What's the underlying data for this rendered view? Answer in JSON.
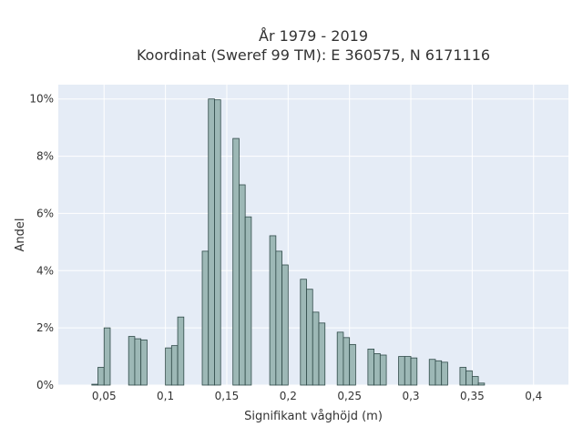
{
  "chart_data": {
    "type": "bar",
    "title_line1": "År 1979 - 2019",
    "title_line2": "Koordinat (Sweref 99 TM): E 360575, N 6171116",
    "xlabel": "Signifikant våghöjd (m)",
    "ylabel": "Andel",
    "xlim": [
      0.0127,
      0.4284
    ],
    "ylim": [
      0,
      10.5
    ],
    "bin_width": 0.005,
    "grid": true,
    "x_ticks": [
      {
        "value": 0.05,
        "label": "0,05"
      },
      {
        "value": 0.1,
        "label": "0,1"
      },
      {
        "value": 0.15,
        "label": "0,15"
      },
      {
        "value": 0.2,
        "label": "0,2"
      },
      {
        "value": 0.25,
        "label": "0,25"
      },
      {
        "value": 0.3,
        "label": "0,3"
      },
      {
        "value": 0.35,
        "label": "0,35"
      },
      {
        "value": 0.4,
        "label": "0,4"
      }
    ],
    "y_ticks": [
      {
        "value": 0,
        "label": "0%"
      },
      {
        "value": 2,
        "label": "2%"
      },
      {
        "value": 4,
        "label": "4%"
      },
      {
        "value": 6,
        "label": "6%"
      },
      {
        "value": 8,
        "label": "8%"
      },
      {
        "value": 10,
        "label": "10%"
      }
    ],
    "bars": [
      {
        "x": 0.04,
        "value": 0.03
      },
      {
        "x": 0.045,
        "value": 0.62
      },
      {
        "x": 0.05,
        "value": 2.0
      },
      {
        "x": 0.07,
        "value": 1.7
      },
      {
        "x": 0.075,
        "value": 1.62
      },
      {
        "x": 0.08,
        "value": 1.58
      },
      {
        "x": 0.1,
        "value": 1.3
      },
      {
        "x": 0.105,
        "value": 1.38
      },
      {
        "x": 0.11,
        "value": 2.38
      },
      {
        "x": 0.13,
        "value": 4.68
      },
      {
        "x": 0.135,
        "value": 10.0
      },
      {
        "x": 0.14,
        "value": 9.97
      },
      {
        "x": 0.155,
        "value": 8.62
      },
      {
        "x": 0.16,
        "value": 7.0
      },
      {
        "x": 0.165,
        "value": 5.88
      },
      {
        "x": 0.185,
        "value": 5.22
      },
      {
        "x": 0.19,
        "value": 4.68
      },
      {
        "x": 0.195,
        "value": 4.2
      },
      {
        "x": 0.21,
        "value": 3.7
      },
      {
        "x": 0.215,
        "value": 3.35
      },
      {
        "x": 0.22,
        "value": 2.55
      },
      {
        "x": 0.225,
        "value": 2.17
      },
      {
        "x": 0.24,
        "value": 1.85
      },
      {
        "x": 0.245,
        "value": 1.66
      },
      {
        "x": 0.25,
        "value": 1.42
      },
      {
        "x": 0.265,
        "value": 1.26
      },
      {
        "x": 0.27,
        "value": 1.1
      },
      {
        "x": 0.275,
        "value": 1.05
      },
      {
        "x": 0.29,
        "value": 1.0
      },
      {
        "x": 0.295,
        "value": 1.0
      },
      {
        "x": 0.3,
        "value": 0.95
      },
      {
        "x": 0.315,
        "value": 0.9
      },
      {
        "x": 0.32,
        "value": 0.85
      },
      {
        "x": 0.325,
        "value": 0.8
      },
      {
        "x": 0.34,
        "value": 0.62
      },
      {
        "x": 0.345,
        "value": 0.5
      },
      {
        "x": 0.35,
        "value": 0.3
      },
      {
        "x": 0.355,
        "value": 0.07
      }
    ],
    "colors": {
      "bar_fill": "#9db8b6",
      "bar_stroke": "#2f4a48",
      "plot_bg": "#e5ecf6",
      "grid": "#ffffff"
    }
  }
}
